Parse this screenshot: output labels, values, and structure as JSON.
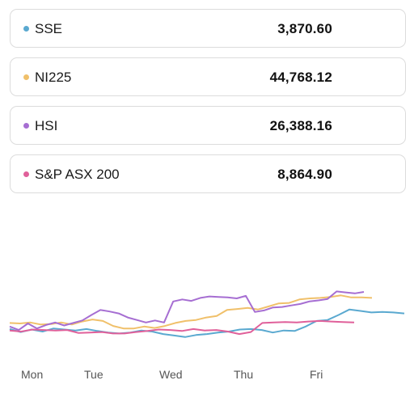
{
  "indices": [
    {
      "name": "SSE",
      "value": "3,870.60",
      "color": "#5aa9d0"
    },
    {
      "name": "NI225",
      "value": "44,768.12",
      "color": "#f0c06a"
    },
    {
      "name": "HSI",
      "value": "26,388.16",
      "color": "#a66ed2"
    },
    {
      "name": "S&P ASX 200",
      "value": "8,864.90",
      "color": "#e0609a"
    }
  ],
  "chart_data": {
    "type": "line",
    "x_labels": [
      "Mon",
      "Tue",
      "Wed",
      "Thu",
      "Fri"
    ],
    "series": [
      {
        "name": "SSE",
        "color": "#5aa9d0",
        "values": [
          -0.3,
          -0.9,
          -0.4,
          -0.8,
          -0.2,
          -0.4,
          -0.6,
          -0.3,
          -0.7,
          -1.0,
          -1.2,
          -1.0,
          -0.6,
          -0.8,
          -1.3,
          -1.6,
          -1.9,
          -1.5,
          -1.3,
          -1.0,
          -0.8,
          -0.4,
          -0.3,
          -0.5,
          -1.0,
          -0.6,
          -0.7,
          0.2,
          1.3,
          1.5,
          2.5,
          3.6,
          3.3,
          3.0,
          3.1,
          3.0,
          2.8
        ]
      },
      {
        "name": "NI225",
        "color": "#f0c06a",
        "values": [
          0.9,
          0.8,
          1.0,
          0.6,
          0.7,
          1.0,
          0.6,
          1.2,
          1.6,
          1.3,
          0.3,
          -0.2,
          -0.2,
          0.2,
          -0.1,
          0.3,
          0.9,
          1.3,
          1.5,
          2.0,
          2.3,
          3.5,
          3.7,
          3.9,
          3.6,
          4.2,
          4.8,
          4.9,
          5.6,
          5.8,
          5.9,
          6.1,
          6.4,
          6.0,
          6.0,
          5.9
        ]
      },
      {
        "name": "HSI",
        "color": "#a66ed2",
        "values": [
          0.2,
          -0.5,
          0.8,
          -0.2,
          0.5,
          1.0,
          0.4,
          0.9,
          1.4,
          2.5,
          3.5,
          3.2,
          2.8,
          2.0,
          1.5,
          1.0,
          1.4,
          1.0,
          5.2,
          5.6,
          5.3,
          5.9,
          6.2,
          6.1,
          6.0,
          5.8,
          6.3,
          3.1,
          3.4,
          4.0,
          4.1,
          4.4,
          4.7,
          5.2,
          5.4,
          5.7,
          7.2,
          7.0,
          6.8,
          7.1
        ]
      },
      {
        "name": "S&P ASX 200",
        "color": "#e0609a",
        "values": [
          -0.6,
          -0.8,
          -0.4,
          -0.5,
          -0.6,
          -0.5,
          -1.1,
          -1.0,
          -0.9,
          -1.2,
          -1.2,
          -0.9,
          -0.7,
          -0.4,
          -0.5,
          -0.7,
          -0.3,
          -0.6,
          -0.5,
          -0.8,
          -1.3,
          -0.9,
          0.9,
          1.0,
          1.1,
          1.0,
          1.2,
          1.3,
          1.2,
          1.1,
          1.0
        ]
      }
    ]
  }
}
